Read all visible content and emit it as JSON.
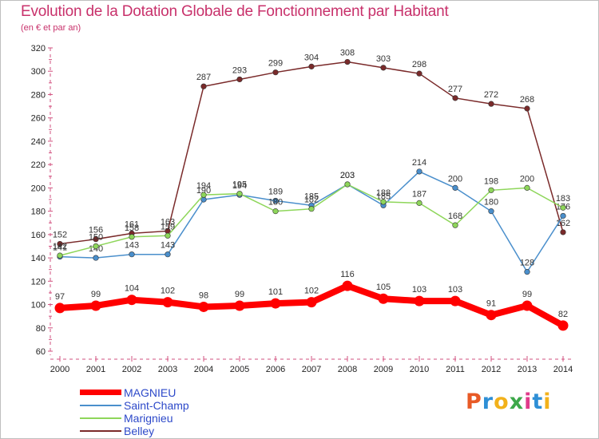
{
  "title": "Evolution de la Dotation Globale de Fonctionnement par Habitant",
  "subtitle": "(en € et par an)",
  "logo_text": "Proxiti",
  "logo_colors": [
    "#e85a26",
    "#2e8fd6",
    "#f2b11b",
    "#3da84a",
    "#e03b8a",
    "#2e8fd6",
    "#f2b11b"
  ],
  "chart_data": {
    "type": "line",
    "title": "Evolution de la Dotation Globale de Fonctionnement par Habitant",
    "subtitle": "(en € et par an)",
    "x": [
      "2000",
      "2001",
      "2002",
      "2003",
      "2004",
      "2005",
      "2006",
      "2007",
      "2008",
      "2009",
      "2010",
      "2011",
      "2012",
      "2013",
      "2014"
    ],
    "ylim": [
      60,
      320
    ],
    "yticks": [
      "60",
      "80",
      "100",
      "120",
      "140",
      "160",
      "180",
      "200",
      "220",
      "240",
      "260",
      "280",
      "300",
      "320"
    ],
    "grid": false,
    "legend": "bottom-left",
    "series": [
      {
        "name": "Belley",
        "color": "#7a2a2a",
        "values": [
          152,
          156,
          161,
          163,
          287,
          293,
          299,
          304,
          308,
          303,
          298,
          277,
          272,
          268,
          162
        ],
        "labels": [
          "152",
          "156",
          "161",
          "163",
          "287",
          "293",
          "299",
          "304",
          "308",
          "303",
          "298",
          "277",
          "272",
          "268",
          "162"
        ]
      },
      {
        "name": "Saint-Champ",
        "color": "#4a8fcc",
        "values": [
          141,
          140,
          143,
          143,
          190,
          194,
          189,
          185,
          203,
          185,
          214,
          200,
          180,
          128,
          176
        ],
        "labels": [
          "141",
          "140",
          "143",
          "143",
          "190",
          "194",
          "189",
          "185",
          "203",
          "185",
          "214",
          "200",
          "180",
          "128",
          "176"
        ]
      },
      {
        "name": "Marignieu",
        "color": "#8ed65a",
        "values": [
          142,
          150,
          158,
          159,
          194,
          195,
          180,
          182,
          203,
          188,
          187,
          168,
          198,
          200,
          183
        ],
        "labels": [
          "142",
          "150",
          "158",
          "159",
          "194",
          "195",
          "180",
          "182",
          "203",
          "188",
          "187",
          "168",
          "198",
          "200",
          "183"
        ]
      },
      {
        "name": "MAGNIEU",
        "color": "#ff0000",
        "values": [
          97,
          99,
          104,
          102,
          98,
          99,
          101,
          102,
          116,
          105,
          103,
          103,
          91,
          99,
          82
        ],
        "labels": [
          "97",
          "99",
          "104",
          "102",
          "98",
          "99",
          "101",
          "102",
          "116",
          "105",
          "103",
          "103",
          "91",
          "99",
          "82"
        ]
      }
    ],
    "legend_entries": [
      "MAGNIEU",
      "Saint-Champ",
      "Marignieu",
      "Belley"
    ]
  }
}
